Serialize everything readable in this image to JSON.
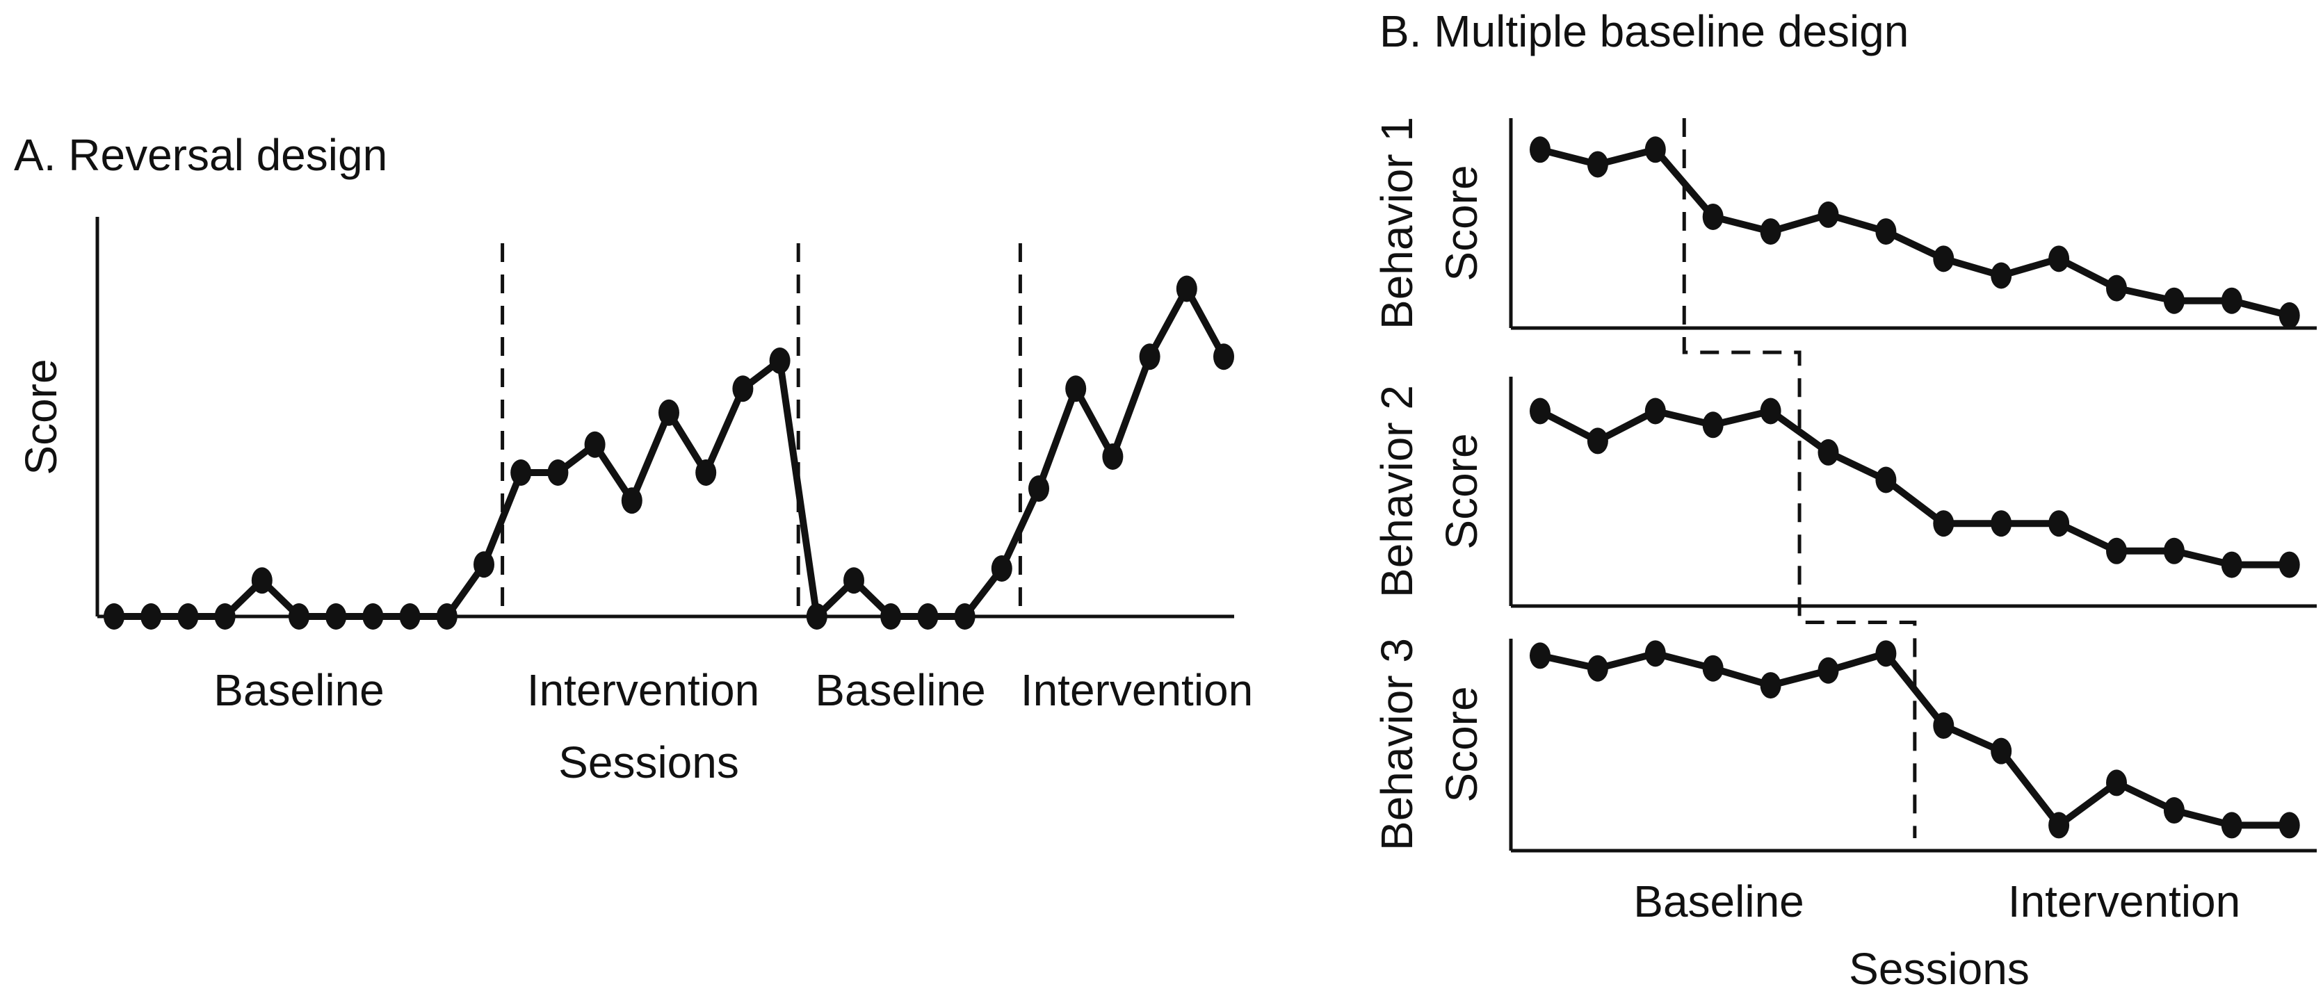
{
  "colors": {
    "ink": "#111111",
    "background": "#ffffff"
  },
  "panel_a": {
    "title": "A. Reversal design",
    "y_axis_label": "Score",
    "x_axis_label": "Sessions"
  },
  "panel_b": {
    "title": "B. Multiple baseline design",
    "x_axis_label": "Sessions",
    "phase_labels": [
      "Baseline",
      "Intervention"
    ],
    "rows": [
      {
        "row_label": "Behavior 1",
        "score_label": "Score"
      },
      {
        "row_label": "Behavior 2",
        "score_label": "Score"
      },
      {
        "row_label": "Behavior 3",
        "score_label": "Score"
      }
    ]
  },
  "chart_data": [
    {
      "id": "reversal",
      "panel": "A",
      "type": "line",
      "title": "A. Reversal design",
      "xlabel": "Sessions",
      "ylabel": "Score",
      "ylim": [
        0,
        10
      ],
      "grid": false,
      "marker": "filled-dot",
      "legend": "none",
      "x": [
        1,
        2,
        3,
        4,
        5,
        6,
        7,
        8,
        9,
        10,
        11,
        12,
        13,
        14,
        15,
        16,
        17,
        18,
        19,
        20,
        21,
        22,
        23,
        24,
        25,
        26,
        27,
        28,
        29,
        30,
        31
      ],
      "values": [
        0,
        0,
        0,
        0,
        0.9,
        0,
        0,
        0,
        0,
        0,
        1.3,
        3.6,
        3.6,
        4.3,
        2.9,
        5.1,
        3.6,
        5.7,
        6.4,
        0,
        0.9,
        0,
        0,
        0,
        1.2,
        3.2,
        5.7,
        4,
        6.5,
        8.2,
        6.5
      ],
      "phases": [
        {
          "label": "Baseline",
          "start_session": 1,
          "end_session": 11
        },
        {
          "label": "Intervention",
          "start_session": 12,
          "end_session": 19
        },
        {
          "label": "Baseline",
          "start_session": 20,
          "end_session": 25
        },
        {
          "label": "Intervention",
          "start_session": 26,
          "end_session": 31
        }
      ],
      "phase_boundaries_after_sessions": [
        11,
        19,
        25
      ]
    },
    {
      "id": "behavior-1",
      "panel": "B",
      "type": "line",
      "title": "Behavior 1",
      "xlabel": "Sessions",
      "ylabel": "Behavior 1 Score",
      "ylim": [
        0,
        10
      ],
      "grid": false,
      "marker": "filled-dot",
      "legend": "none",
      "x": [
        1,
        2,
        3,
        4,
        5,
        6,
        7,
        8,
        9,
        10,
        11,
        12,
        13,
        14
      ],
      "values": [
        8.5,
        7.8,
        8.5,
        5.3,
        4.6,
        5.4,
        4.6,
        3.3,
        2.5,
        3.3,
        1.9,
        1.3,
        1.3,
        0.6
      ],
      "phases": [
        {
          "label": "Baseline",
          "start_session": 1,
          "end_session": 3
        },
        {
          "label": "Intervention",
          "start_session": 4,
          "end_session": 14
        }
      ],
      "phase_boundaries_after_sessions": [
        3
      ]
    },
    {
      "id": "behavior-2",
      "panel": "B",
      "type": "line",
      "title": "Behavior 2",
      "xlabel": "Sessions",
      "ylabel": "Behavior 2 Score",
      "ylim": [
        0,
        10
      ],
      "grid": false,
      "marker": "filled-dot",
      "legend": "none",
      "x": [
        1,
        2,
        3,
        4,
        5,
        6,
        7,
        8,
        9,
        10,
        11,
        12,
        13,
        14
      ],
      "values": [
        8.5,
        7.2,
        8.5,
        7.9,
        8.5,
        6.7,
        5.5,
        3.6,
        3.6,
        3.6,
        2.4,
        2.4,
        1.8,
        1.8
      ],
      "phases": [
        {
          "label": "Baseline",
          "start_session": 1,
          "end_session": 5
        },
        {
          "label": "Intervention",
          "start_session": 6,
          "end_session": 14
        }
      ],
      "phase_boundaries_after_sessions": [
        5
      ]
    },
    {
      "id": "behavior-3",
      "panel": "B",
      "type": "line",
      "title": "Behavior 3",
      "xlabel": "Sessions",
      "ylabel": "Behavior 3 Score",
      "ylim": [
        0,
        10
      ],
      "grid": false,
      "marker": "filled-dot",
      "legend": "none",
      "x": [
        1,
        2,
        3,
        4,
        5,
        6,
        7,
        8,
        9,
        10,
        11,
        12,
        13,
        14
      ],
      "values": [
        9.2,
        8.6,
        9.3,
        8.6,
        7.8,
        8.5,
        9.3,
        5.9,
        4.7,
        1.2,
        3.2,
        1.9,
        1.2,
        1.2
      ],
      "phases": [
        {
          "label": "Baseline",
          "start_session": 1,
          "end_session": 7
        },
        {
          "label": "Intervention",
          "start_session": 8,
          "end_session": 14
        }
      ],
      "phase_boundaries_after_sessions": [
        7
      ]
    }
  ]
}
